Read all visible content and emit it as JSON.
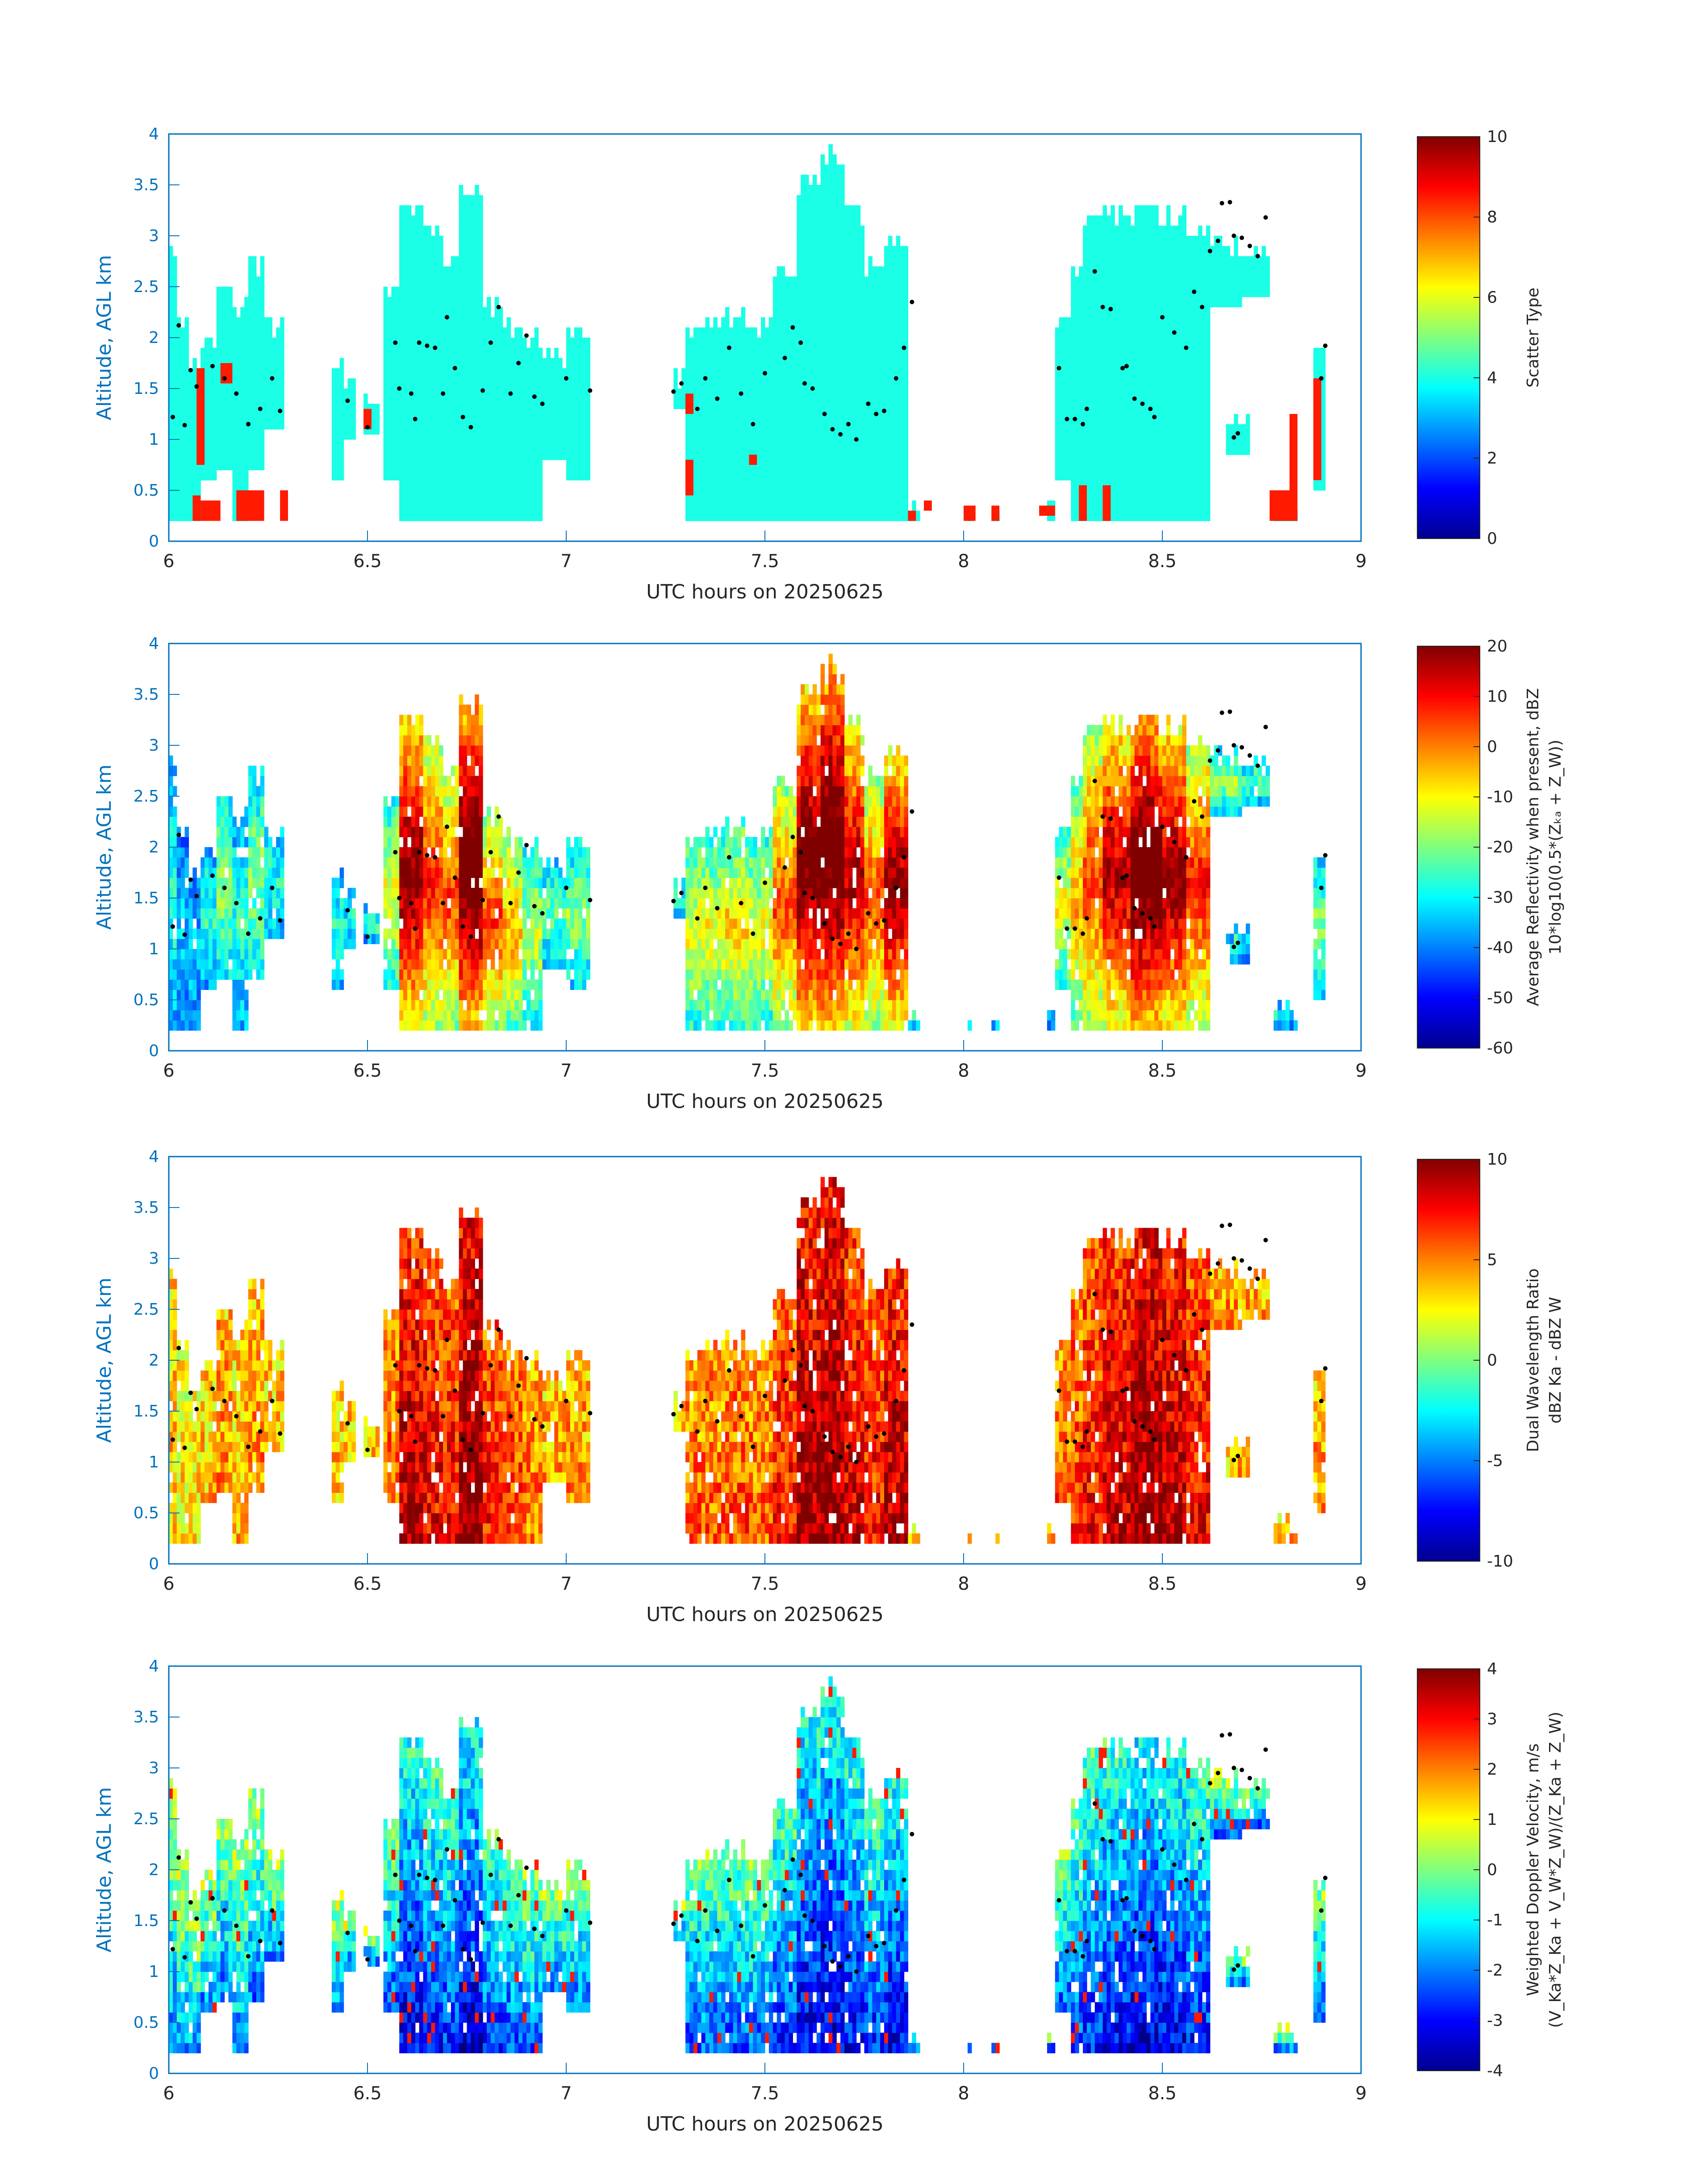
{
  "figure": {
    "panels": [
      {
        "ylabel": "Altitude, AGL km",
        "xlabel": "UTC hours on 20250625",
        "colorbar": {
          "label_line1": "Scatter Type",
          "label_line2": ""
        }
      },
      {
        "ylabel": "Altitude, AGL km",
        "xlabel": "UTC hours on 20250625",
        "colorbar": {
          "label_line1": "Average Reflectivity when present, dBZ",
          "label_line2": "10*log10(0.5*(Zₖₐ + Z_W))"
        }
      },
      {
        "ylabel": "Altitude, AGL km",
        "xlabel": "UTC hours on 20250625",
        "colorbar": {
          "label_line1": "Dual Wavelength Ratio",
          "label_line2": "dBZ Ka - dBZ W"
        }
      },
      {
        "ylabel": "Altitude, AGL km",
        "xlabel": "UTC hours on 20250625",
        "colorbar": {
          "label_line1": "Weighted Doppler Velocity, m/s",
          "label_line2": "(V_Ka*Z_Ka + V_W*Z_W)/(Z_Ka + Z_W)"
        }
      }
    ]
  },
  "chart_data": [
    {
      "type": "heatmap",
      "title": "",
      "xlabel": "UTC hours on 20250625",
      "ylabel": "Altitude, AGL km",
      "xlim": [
        6,
        9
      ],
      "ylim": [
        0,
        4
      ],
      "xticks": [
        "6",
        "6.5",
        "7",
        "7.5",
        "8",
        "8.5",
        "9"
      ],
      "yticks": [
        "0",
        "0.5",
        "1",
        "1.5",
        "2",
        "2.5",
        "3",
        "3.5",
        "4"
      ],
      "colorbar": {
        "label": "Scatter Type",
        "range": [
          0,
          10
        ],
        "ticks": [
          "0",
          "2",
          "4",
          "6",
          "8",
          "10"
        ],
        "colormap": "jet"
      },
      "dominant_value": 4.0,
      "secondary_value": 8.5,
      "overlay": "black dots (cloud base estimate)"
    },
    {
      "type": "heatmap",
      "title": "",
      "xlabel": "UTC hours on 20250625",
      "ylabel": "Altitude, AGL km",
      "xlim": [
        6,
        9
      ],
      "ylim": [
        0,
        4
      ],
      "xticks": [
        "6",
        "6.5",
        "7",
        "7.5",
        "8",
        "8.5",
        "9"
      ],
      "yticks": [
        "0",
        "0.5",
        "1",
        "1.5",
        "2",
        "2.5",
        "3",
        "3.5",
        "4"
      ],
      "colorbar": {
        "label": "Average Reflectivity when present, dBZ",
        "range": [
          -60,
          20
        ],
        "ticks": [
          "-60",
          "-50",
          "-40",
          "-30",
          "-20",
          "-10",
          "0",
          "10",
          "20"
        ],
        "colormap": "jet"
      },
      "overlay": "black dots (cloud base estimate)"
    },
    {
      "type": "heatmap",
      "title": "",
      "xlabel": "UTC hours on 20250625",
      "ylabel": "Altitude, AGL km",
      "xlim": [
        6,
        9
      ],
      "ylim": [
        0,
        4
      ],
      "xticks": [
        "6",
        "6.5",
        "7",
        "7.5",
        "8",
        "8.5",
        "9"
      ],
      "yticks": [
        "0",
        "0.5",
        "1",
        "1.5",
        "2",
        "2.5",
        "3",
        "3.5",
        "4"
      ],
      "colorbar": {
        "label": "Dual Wavelength Ratio",
        "range": [
          -10,
          10
        ],
        "ticks": [
          "-10",
          "-5",
          "0",
          "5",
          "10"
        ],
        "colormap": "jet"
      },
      "overlay": "black dots (cloud base estimate)"
    },
    {
      "type": "heatmap",
      "title": "",
      "xlabel": "UTC hours on 20250625",
      "ylabel": "Altitude, AGL km",
      "xlim": [
        6,
        9
      ],
      "ylim": [
        0,
        4
      ],
      "xticks": [
        "6",
        "6.5",
        "7",
        "7.5",
        "8",
        "8.5",
        "9"
      ],
      "yticks": [
        "0",
        "0.5",
        "1",
        "1.5",
        "2",
        "2.5",
        "3",
        "3.5",
        "4"
      ],
      "colorbar": {
        "label": "Weighted Doppler Velocity, m/s",
        "range": [
          -4,
          4
        ],
        "ticks": [
          "-4",
          "-3",
          "-2",
          "-1",
          "0",
          "1",
          "2",
          "3",
          "4"
        ],
        "colormap": "jet"
      },
      "overlay": "black dots (cloud base estimate)"
    }
  ],
  "cloud_columns": [
    {
      "x0": 6.0,
      "x1": 6.02,
      "bot": 0.2,
      "top": 2.9,
      "core": 0.3
    },
    {
      "x0": 6.02,
      "x1": 6.05,
      "bot": 0.2,
      "top": 2.3,
      "core": 0.2
    },
    {
      "x0": 6.05,
      "x1": 6.08,
      "bot": 0.2,
      "top": 1.8,
      "core": 0.2
    },
    {
      "x0": 6.08,
      "x1": 6.12,
      "bot": 0.6,
      "top": 2.0,
      "core": 0.3
    },
    {
      "x0": 6.12,
      "x1": 6.16,
      "bot": 0.7,
      "top": 2.6,
      "core": 0.4
    },
    {
      "x0": 6.16,
      "x1": 6.2,
      "bot": 0.2,
      "top": 2.4,
      "core": 0.3
    },
    {
      "x0": 6.2,
      "x1": 6.24,
      "bot": 0.7,
      "top": 2.75,
      "core": 0.4
    },
    {
      "x0": 6.24,
      "x1": 6.29,
      "bot": 1.1,
      "top": 2.2,
      "core": 0.3
    },
    {
      "x0": 6.41,
      "x1": 6.44,
      "bot": 0.6,
      "top": 1.8,
      "core": 0.3
    },
    {
      "x0": 6.44,
      "x1": 6.47,
      "bot": 1.0,
      "top": 1.6,
      "core": 0.3
    },
    {
      "x0": 6.49,
      "x1": 6.53,
      "bot": 1.05,
      "top": 1.5,
      "core": 0.3
    },
    {
      "x0": 6.54,
      "x1": 6.58,
      "bot": 0.6,
      "top": 2.5,
      "core": 0.5
    },
    {
      "x0": 6.58,
      "x1": 6.64,
      "bot": 0.2,
      "top": 3.4,
      "core": 0.9
    },
    {
      "x0": 6.64,
      "x1": 6.69,
      "bot": 0.2,
      "top": 3.1,
      "core": 0.75
    },
    {
      "x0": 6.69,
      "x1": 6.73,
      "bot": 0.2,
      "top": 2.9,
      "core": 0.7
    },
    {
      "x0": 6.73,
      "x1": 6.79,
      "bot": 0.2,
      "top": 3.5,
      "core": 1.0
    },
    {
      "x0": 6.79,
      "x1": 6.84,
      "bot": 0.2,
      "top": 2.4,
      "core": 0.7
    },
    {
      "x0": 6.84,
      "x1": 6.89,
      "bot": 0.2,
      "top": 2.2,
      "core": 0.6
    },
    {
      "x0": 6.89,
      "x1": 6.94,
      "bot": 0.2,
      "top": 2.1,
      "core": 0.45
    },
    {
      "x0": 6.94,
      "x1": 7.0,
      "bot": 0.8,
      "top": 1.9,
      "core": 0.35
    },
    {
      "x0": 7.0,
      "x1": 7.06,
      "bot": 0.6,
      "top": 2.1,
      "core": 0.4
    },
    {
      "x0": 7.27,
      "x1": 7.3,
      "bot": 1.3,
      "top": 1.7,
      "core": 0.3
    },
    {
      "x0": 7.3,
      "x1": 7.35,
      "bot": 0.2,
      "top": 2.1,
      "core": 0.5
    },
    {
      "x0": 7.35,
      "x1": 7.4,
      "bot": 0.2,
      "top": 2.2,
      "core": 0.5
    },
    {
      "x0": 7.4,
      "x1": 7.46,
      "bot": 0.2,
      "top": 2.3,
      "core": 0.55
    },
    {
      "x0": 7.46,
      "x1": 7.52,
      "bot": 0.2,
      "top": 2.2,
      "core": 0.5
    },
    {
      "x0": 7.52,
      "x1": 7.58,
      "bot": 0.2,
      "top": 2.7,
      "core": 0.7
    },
    {
      "x0": 7.58,
      "x1": 7.64,
      "bot": 0.2,
      "top": 3.6,
      "core": 0.95
    },
    {
      "x0": 7.64,
      "x1": 7.7,
      "bot": 0.2,
      "top": 3.85,
      "core": 1.0
    },
    {
      "x0": 7.7,
      "x1": 7.75,
      "bot": 0.2,
      "top": 3.3,
      "core": 0.85
    },
    {
      "x0": 7.75,
      "x1": 7.8,
      "bot": 0.2,
      "top": 2.8,
      "core": 0.7
    },
    {
      "x0": 7.8,
      "x1": 7.86,
      "bot": 0.2,
      "top": 3.0,
      "core": 0.9
    },
    {
      "x0": 7.86,
      "x1": 7.9,
      "bot": 0.2,
      "top": 0.4,
      "core": 0.3
    },
    {
      "x0": 8.0,
      "x1": 8.03,
      "bot": 0.2,
      "top": 0.35,
      "core": 0.3
    },
    {
      "x0": 8.07,
      "x1": 8.09,
      "bot": 0.2,
      "top": 0.35,
      "core": 0.3
    },
    {
      "x0": 8.19,
      "x1": 8.23,
      "bot": 0.2,
      "top": 0.35,
      "core": 0.3
    },
    {
      "x0": 8.23,
      "x1": 8.27,
      "bot": 0.6,
      "top": 2.3,
      "core": 0.5
    },
    {
      "x0": 8.27,
      "x1": 8.3,
      "bot": 0.2,
      "top": 2.8,
      "core": 0.6
    },
    {
      "x0": 8.3,
      "x1": 8.35,
      "bot": 0.2,
      "top": 3.2,
      "core": 0.7
    },
    {
      "x0": 8.35,
      "x1": 8.42,
      "bot": 0.2,
      "top": 3.3,
      "core": 0.85
    },
    {
      "x0": 8.42,
      "x1": 8.5,
      "bot": 0.2,
      "top": 3.3,
      "core": 1.0
    },
    {
      "x0": 8.5,
      "x1": 8.56,
      "bot": 0.2,
      "top": 3.25,
      "core": 0.9
    },
    {
      "x0": 8.56,
      "x1": 8.62,
      "bot": 0.2,
      "top": 3.05,
      "core": 0.75
    },
    {
      "x0": 8.62,
      "x1": 8.7,
      "bot": 2.3,
      "top": 3.0,
      "core": 0.4
    },
    {
      "x0": 8.7,
      "x1": 8.77,
      "bot": 2.4,
      "top": 2.9,
      "core": 0.35
    },
    {
      "x0": 8.66,
      "x1": 8.72,
      "bot": 0.85,
      "top": 1.3,
      "core": 0.3
    },
    {
      "x0": 8.78,
      "x1": 8.84,
      "bot": 0.2,
      "top": 0.5,
      "core": 0.3
    },
    {
      "x0": 8.88,
      "x1": 8.91,
      "bot": 0.5,
      "top": 1.9,
      "core": 0.4
    }
  ],
  "scatter_type2_cells": [
    {
      "x0": 6.06,
      "x1": 6.08,
      "bot": 0.2,
      "top": 0.45
    },
    {
      "x0": 6.08,
      "x1": 6.13,
      "bot": 0.2,
      "top": 0.4
    },
    {
      "x0": 6.17,
      "x1": 6.24,
      "bot": 0.2,
      "top": 0.5
    },
    {
      "x0": 6.28,
      "x1": 6.3,
      "bot": 0.2,
      "top": 0.5
    },
    {
      "x0": 6.07,
      "x1": 6.09,
      "bot": 0.75,
      "top": 1.7
    },
    {
      "x0": 6.13,
      "x1": 6.16,
      "bot": 1.55,
      "top": 1.75
    },
    {
      "x0": 6.49,
      "x1": 6.51,
      "bot": 1.1,
      "top": 1.3
    },
    {
      "x0": 7.3,
      "x1": 7.32,
      "bot": 0.45,
      "top": 0.8
    },
    {
      "x0": 7.3,
      "x1": 7.32,
      "bot": 1.25,
      "top": 1.45
    },
    {
      "x0": 7.46,
      "x1": 7.48,
      "bot": 0.75,
      "top": 0.85
    },
    {
      "x0": 7.86,
      "x1": 7.88,
      "bot": 0.2,
      "top": 0.3
    },
    {
      "x0": 7.9,
      "x1": 7.92,
      "bot": 0.3,
      "top": 0.4
    },
    {
      "x0": 8.0,
      "x1": 8.03,
      "bot": 0.2,
      "top": 0.35
    },
    {
      "x0": 8.07,
      "x1": 8.09,
      "bot": 0.2,
      "top": 0.35
    },
    {
      "x0": 8.19,
      "x1": 8.23,
      "bot": 0.25,
      "top": 0.35
    },
    {
      "x0": 8.29,
      "x1": 8.31,
      "bot": 0.2,
      "top": 0.55
    },
    {
      "x0": 8.35,
      "x1": 8.37,
      "bot": 0.2,
      "top": 0.55
    },
    {
      "x0": 8.77,
      "x1": 8.84,
      "bot": 0.2,
      "top": 0.5
    },
    {
      "x0": 8.82,
      "x1": 8.84,
      "bot": 0.5,
      "top": 1.25
    },
    {
      "x0": 8.88,
      "x1": 8.9,
      "bot": 0.6,
      "top": 1.6
    }
  ],
  "cloud_base_points": [
    {
      "x": 6.01,
      "y": 1.22
    },
    {
      "x": 6.025,
      "y": 2.12
    },
    {
      "x": 6.04,
      "y": 1.14
    },
    {
      "x": 6.055,
      "y": 1.68
    },
    {
      "x": 6.07,
      "y": 1.52
    },
    {
      "x": 6.11,
      "y": 1.72
    },
    {
      "x": 6.14,
      "y": 1.6
    },
    {
      "x": 6.17,
      "y": 1.45
    },
    {
      "x": 6.2,
      "y": 1.15
    },
    {
      "x": 6.23,
      "y": 1.3
    },
    {
      "x": 6.26,
      "y": 1.6
    },
    {
      "x": 6.28,
      "y": 1.28
    },
    {
      "x": 6.45,
      "y": 1.38
    },
    {
      "x": 6.5,
      "y": 1.12
    },
    {
      "x": 6.57,
      "y": 1.95
    },
    {
      "x": 6.58,
      "y": 1.5
    },
    {
      "x": 6.61,
      "y": 1.45
    },
    {
      "x": 6.62,
      "y": 1.2
    },
    {
      "x": 6.63,
      "y": 1.95
    },
    {
      "x": 6.65,
      "y": 1.92
    },
    {
      "x": 6.67,
      "y": 1.9
    },
    {
      "x": 6.69,
      "y": 1.45
    },
    {
      "x": 6.7,
      "y": 2.2
    },
    {
      "x": 6.72,
      "y": 1.7
    },
    {
      "x": 6.74,
      "y": 1.22
    },
    {
      "x": 6.76,
      "y": 1.12
    },
    {
      "x": 6.79,
      "y": 1.48
    },
    {
      "x": 6.81,
      "y": 1.95
    },
    {
      "x": 6.83,
      "y": 2.3
    },
    {
      "x": 6.86,
      "y": 1.45
    },
    {
      "x": 6.88,
      "y": 1.75
    },
    {
      "x": 6.9,
      "y": 2.02
    },
    {
      "x": 6.92,
      "y": 1.42
    },
    {
      "x": 6.94,
      "y": 1.35
    },
    {
      "x": 7.0,
      "y": 1.6
    },
    {
      "x": 7.06,
      "y": 1.48
    },
    {
      "x": 7.27,
      "y": 1.47
    },
    {
      "x": 7.29,
      "y": 1.55
    },
    {
      "x": 7.33,
      "y": 1.3
    },
    {
      "x": 7.35,
      "y": 1.6
    },
    {
      "x": 7.38,
      "y": 1.4
    },
    {
      "x": 7.41,
      "y": 1.9
    },
    {
      "x": 7.44,
      "y": 1.45
    },
    {
      "x": 7.47,
      "y": 1.15
    },
    {
      "x": 7.5,
      "y": 1.65
    },
    {
      "x": 7.55,
      "y": 1.8
    },
    {
      "x": 7.57,
      "y": 2.1
    },
    {
      "x": 7.59,
      "y": 1.95
    },
    {
      "x": 7.6,
      "y": 1.55
    },
    {
      "x": 7.62,
      "y": 1.5
    },
    {
      "x": 7.65,
      "y": 1.25
    },
    {
      "x": 7.67,
      "y": 1.1
    },
    {
      "x": 7.69,
      "y": 1.05
    },
    {
      "x": 7.71,
      "y": 1.15
    },
    {
      "x": 7.73,
      "y": 1.0
    },
    {
      "x": 7.76,
      "y": 1.35
    },
    {
      "x": 7.78,
      "y": 1.25
    },
    {
      "x": 7.8,
      "y": 1.28
    },
    {
      "x": 7.83,
      "y": 1.6
    },
    {
      "x": 7.85,
      "y": 1.9
    },
    {
      "x": 7.87,
      "y": 2.35
    },
    {
      "x": 8.24,
      "y": 1.7
    },
    {
      "x": 8.26,
      "y": 1.2
    },
    {
      "x": 8.28,
      "y": 1.2
    },
    {
      "x": 8.3,
      "y": 1.15
    },
    {
      "x": 8.31,
      "y": 1.3
    },
    {
      "x": 8.33,
      "y": 2.65
    },
    {
      "x": 8.35,
      "y": 2.3
    },
    {
      "x": 8.37,
      "y": 2.28
    },
    {
      "x": 8.4,
      "y": 1.7
    },
    {
      "x": 8.41,
      "y": 1.72
    },
    {
      "x": 8.43,
      "y": 1.4
    },
    {
      "x": 8.45,
      "y": 1.35
    },
    {
      "x": 8.47,
      "y": 1.3
    },
    {
      "x": 8.48,
      "y": 1.22
    },
    {
      "x": 8.5,
      "y": 2.2
    },
    {
      "x": 8.53,
      "y": 2.05
    },
    {
      "x": 8.56,
      "y": 1.9
    },
    {
      "x": 8.58,
      "y": 2.45
    },
    {
      "x": 8.6,
      "y": 2.3
    },
    {
      "x": 8.62,
      "y": 2.85
    },
    {
      "x": 8.64,
      "y": 2.95
    },
    {
      "x": 8.65,
      "y": 3.32
    },
    {
      "x": 8.67,
      "y": 3.33
    },
    {
      "x": 8.68,
      "y": 3.0
    },
    {
      "x": 8.7,
      "y": 2.98
    },
    {
      "x": 8.72,
      "y": 2.9
    },
    {
      "x": 8.74,
      "y": 2.8
    },
    {
      "x": 8.76,
      "y": 3.18
    },
    {
      "x": 8.68,
      "y": 1.02
    },
    {
      "x": 8.69,
      "y": 1.06
    },
    {
      "x": 8.9,
      "y": 1.6
    },
    {
      "x": 8.91,
      "y": 1.92
    }
  ]
}
